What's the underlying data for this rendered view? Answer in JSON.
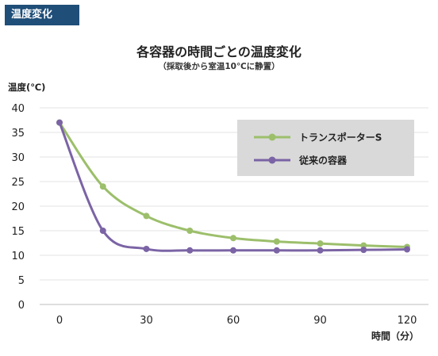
{
  "header": {
    "tag_label": "温度変化"
  },
  "chart_data": {
    "type": "line",
    "title": "各容器の時間ごとの温度変化",
    "subtitle": "（採取後から室温10℃に静置）",
    "ylabel": "温度(℃)",
    "xlabel": "時間（分）",
    "xlim": [
      0,
      120
    ],
    "ylim": [
      0,
      40
    ],
    "x_ticks": [
      0,
      30,
      60,
      90,
      120
    ],
    "y_ticks": [
      0,
      5,
      10,
      15,
      20,
      25,
      30,
      35,
      40
    ],
    "grid": "horizontal",
    "legend_position": "top-right",
    "series": [
      {
        "name": "トランスポーターS",
        "color": "#9cbf6b",
        "x": [
          0,
          15,
          30,
          45,
          60,
          75,
          90,
          105,
          120
        ],
        "y": [
          37,
          24,
          18,
          15,
          13.5,
          12.8,
          12.4,
          12,
          11.7
        ]
      },
      {
        "name": "従来の容器",
        "color": "#7b64a5",
        "x": [
          0,
          15,
          30,
          45,
          60,
          75,
          90,
          105,
          120
        ],
        "y": [
          37,
          15,
          11.3,
          11,
          11,
          11,
          11,
          11.1,
          11.2
        ]
      }
    ]
  }
}
